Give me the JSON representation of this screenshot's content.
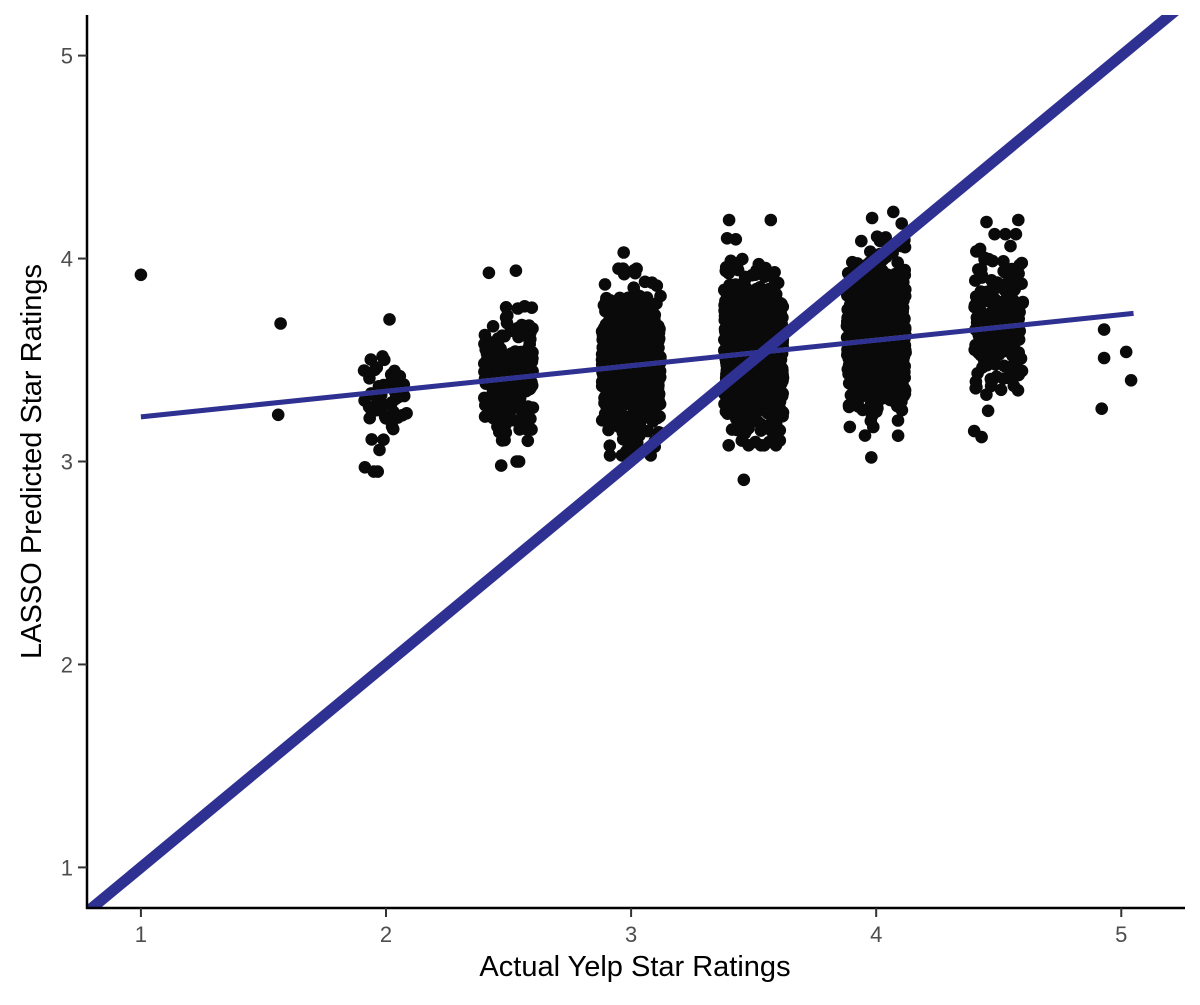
{
  "chart_data": {
    "type": "scatter",
    "title": "",
    "xlabel": "Actual Yelp Star Ratings",
    "ylabel": "LASSO Predicted Star Ratings",
    "xlim": [
      0.78,
      5.26
    ],
    "ylim": [
      0.8,
      5.2
    ],
    "x_ticks": [
      "1",
      "2",
      "3",
      "4",
      "5"
    ],
    "y_ticks": [
      "1",
      "2",
      "3",
      "4",
      "5"
    ],
    "grid": false,
    "legend": "none",
    "colors": {
      "points": "#0a0a0a",
      "line": "#2e3192",
      "axis": "#000000",
      "ribbon": "#cccccc"
    },
    "reference_line": {
      "label": "y = x",
      "slope": 1,
      "intercept": 0
    },
    "fit_line": {
      "label": "linear fit",
      "x": [
        1,
        5.05
      ],
      "y": [
        3.22,
        3.73
      ]
    },
    "outlier_points": [
      {
        "x": 1.0,
        "y": 3.92
      },
      {
        "x": 1.57,
        "y": 3.68
      },
      {
        "x": 1.56,
        "y": 3.23
      },
      {
        "x": 1.95,
        "y": 2.95
      },
      {
        "x": 2.47,
        "y": 2.98
      },
      {
        "x": 2.42,
        "y": 3.93
      },
      {
        "x": 2.53,
        "y": 3.94
      },
      {
        "x": 2.49,
        "y": 3.76
      },
      {
        "x": 2.98,
        "y": 3.05
      },
      {
        "x": 3.02,
        "y": 3.05
      },
      {
        "x": 3.08,
        "y": 3.03
      },
      {
        "x": 2.97,
        "y": 4.03
      },
      {
        "x": 3.4,
        "y": 4.19
      },
      {
        "x": 3.57,
        "y": 4.19
      },
      {
        "x": 3.46,
        "y": 2.91
      },
      {
        "x": 3.53,
        "y": 3.08
      },
      {
        "x": 3.98,
        "y": 3.02
      },
      {
        "x": 4.07,
        "y": 4.23
      },
      {
        "x": 4.58,
        "y": 4.19
      },
      {
        "x": 4.45,
        "y": 4.18
      },
      {
        "x": 4.4,
        "y": 3.15
      },
      {
        "x": 4.43,
        "y": 3.12
      },
      {
        "x": 4.93,
        "y": 3.65
      },
      {
        "x": 4.93,
        "y": 3.51
      },
      {
        "x": 5.02,
        "y": 3.54
      },
      {
        "x": 4.92,
        "y": 3.26
      },
      {
        "x": 5.04,
        "y": 3.4
      }
    ],
    "clusters": [
      {
        "x_center": 2.0,
        "x_spread": 0.09,
        "y_mean": 3.33,
        "y_sd": 0.13,
        "y_min": 2.95,
        "y_max": 3.7,
        "count": 55
      },
      {
        "x_center": 2.5,
        "x_spread": 0.1,
        "y_mean": 3.43,
        "y_sd": 0.14,
        "y_min": 3.0,
        "y_max": 3.8,
        "count": 240
      },
      {
        "x_center": 3.0,
        "x_spread": 0.12,
        "y_mean": 3.48,
        "y_sd": 0.16,
        "y_min": 3.03,
        "y_max": 3.95,
        "count": 750
      },
      {
        "x_center": 3.5,
        "x_spread": 0.12,
        "y_mean": 3.55,
        "y_sd": 0.17,
        "y_min": 3.08,
        "y_max": 4.1,
        "count": 1000
      },
      {
        "x_center": 4.0,
        "x_spread": 0.12,
        "y_mean": 3.62,
        "y_sd": 0.17,
        "y_min": 3.08,
        "y_max": 4.2,
        "count": 1000
      },
      {
        "x_center": 4.5,
        "x_spread": 0.1,
        "y_mean": 3.66,
        "y_sd": 0.17,
        "y_min": 3.25,
        "y_max": 4.12,
        "count": 210
      }
    ]
  }
}
